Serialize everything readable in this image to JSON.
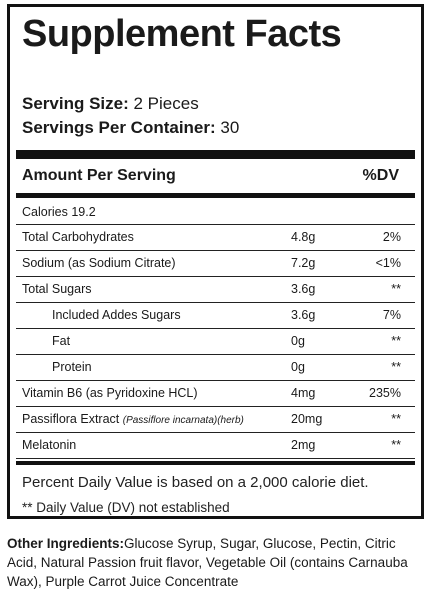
{
  "label": {
    "title": "Supplement Facts",
    "serving_size_label": "Serving Size:",
    "serving_size_value": "2 Pieces",
    "servings_per_container_label": "Servings Per Container:",
    "servings_per_container_value": "30",
    "amount_header": "Amount Per Serving",
    "dv_header": "%DV",
    "calories": "Calories 19.2",
    "rows": [
      {
        "name": "Total Carbohydrates",
        "sub": "",
        "amount": "4.8g",
        "dv": "2%"
      },
      {
        "name": "Sodium (as Sodium Citrate)",
        "sub": "",
        "amount": "7.2g",
        "dv": "<1%"
      },
      {
        "name": "Total Sugars",
        "sub": "",
        "amount": "3.6g",
        "dv": "**"
      },
      {
        "name": "Included Addes Sugars",
        "sub": "",
        "amount": "3.6g",
        "dv": "7%"
      },
      {
        "name": "Fat",
        "sub": "",
        "amount": "0g",
        "dv": "**"
      },
      {
        "name": "Protein",
        "sub": "",
        "amount": "0g",
        "dv": "**"
      },
      {
        "name": "Vitamin B6 (as Pyridoxine HCL)",
        "sub": "",
        "amount": "4mg",
        "dv": "235%"
      },
      {
        "name": "Passiflora Extract ",
        "sub": "(Passiflore incarnata)(herb)",
        "amount": "20mg",
        "dv": "**"
      },
      {
        "name": "Melatonin",
        "sub": "",
        "amount": "2mg",
        "dv": "**"
      }
    ],
    "footnote_1": "Percent Daily Value is based on a 2,000 calorie diet.",
    "footnote_2": "** Daily Value (DV) not established"
  },
  "other_ingredients": {
    "label": "Other Ingredients:",
    "text": "Glucose Syrup,  Sugar, Glucose, Pectin, Citric Acid, Natural Passion fruit flavor, Vegetable Oil (contains Carnauba Wax), Purple Carrot Juice Concentrate"
  }
}
